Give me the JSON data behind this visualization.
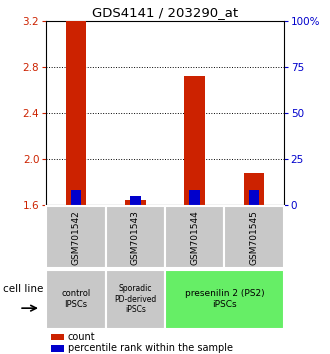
{
  "title": "GDS4141 / 203290_at",
  "samples": [
    "GSM701542",
    "GSM701543",
    "GSM701544",
    "GSM701545"
  ],
  "red_values": [
    3.2,
    1.65,
    2.72,
    1.88
  ],
  "blue_values": [
    1.73,
    1.68,
    1.73,
    1.73
  ],
  "red_base": 1.6,
  "ylim_left": [
    1.6,
    3.2
  ],
  "ylim_right": [
    0,
    100
  ],
  "yticks_left": [
    1.6,
    2.0,
    2.4,
    2.8,
    3.2
  ],
  "yticks_right": [
    0,
    25,
    50,
    75,
    100
  ],
  "ytick_labels_right": [
    "0",
    "25",
    "50",
    "75",
    "100%"
  ],
  "red_color": "#CC2200",
  "blue_color": "#0000CC",
  "bar_width": 0.35,
  "blue_bar_width": 0.18,
  "group_xranges": [
    [
      0,
      1
    ],
    [
      1,
      2
    ],
    [
      2,
      4
    ]
  ],
  "group_texts": [
    "control\nIPSCs",
    "Sporadic\nPD-derived\niPSCs",
    "presenilin 2 (PS2)\niPSCs"
  ],
  "group_colors": [
    "#c8c8c8",
    "#c8c8c8",
    "#66ee66"
  ],
  "group_fontsizes": [
    7,
    6.5,
    7.5
  ],
  "sample_bg": "#c8c8c8",
  "xlabel": "cell line",
  "legend_items": [
    {
      "color": "#CC2200",
      "label": "count"
    },
    {
      "color": "#0000CC",
      "label": "percentile rank within the sample"
    }
  ]
}
